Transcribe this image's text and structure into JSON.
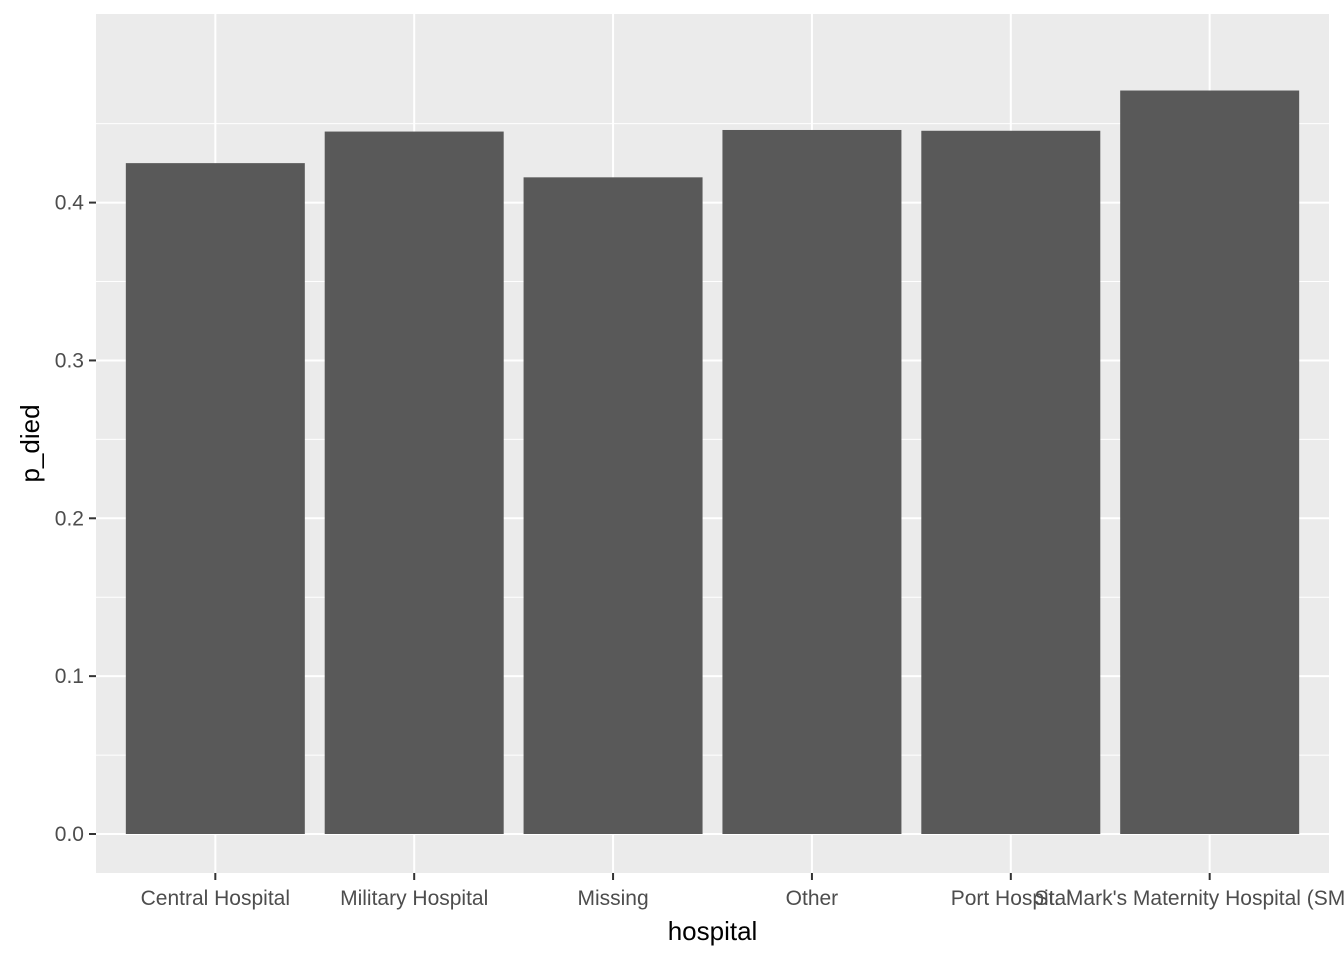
{
  "chart_data": {
    "type": "bar",
    "categories": [
      "Central Hospital",
      "Military Hospital",
      "Missing",
      "Other",
      "Port Hospital",
      "St. Mark's Maternity Hospital (SMMH)"
    ],
    "values": [
      0.425,
      0.445,
      0.416,
      0.446,
      0.4455,
      0.471
    ],
    "xlabel": "hospital",
    "ylabel": "p_died",
    "ylim": [
      0,
      0.4935
    ],
    "yticks": [
      0.0,
      0.1,
      0.2,
      0.3,
      0.4
    ],
    "ytick_labels": [
      "0.0",
      "0.1",
      "0.2",
      "0.3",
      "0.4"
    ],
    "grid": true,
    "colors": {
      "panel": "#ebebeb",
      "grid": "#ffffff",
      "bar": "#595959",
      "tick": "#333333"
    }
  }
}
